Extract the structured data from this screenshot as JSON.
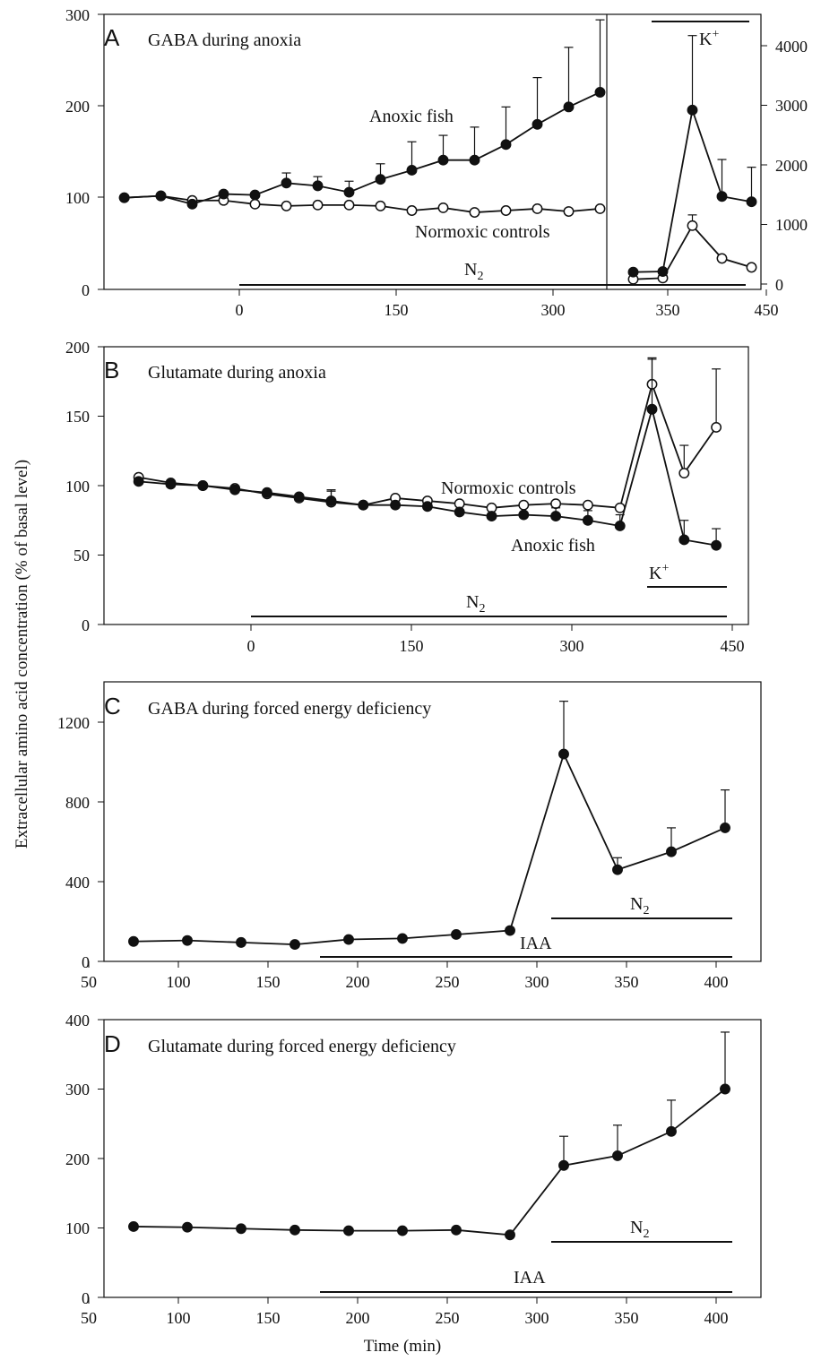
{
  "figure": {
    "ylabel": "Extracellular amino acid concentration (% of basal level)",
    "xlabel": "Time (min)"
  },
  "chart_data": [
    {
      "type": "line",
      "panel": "A",
      "title": "GABA during anoxia",
      "y_ticks": [
        "0",
        "100",
        "200",
        "300"
      ],
      "x_ticks": [
        "0",
        "150",
        "300"
      ],
      "ylim": [
        0,
        300
      ],
      "series": [
        {
          "name": "Anoxic fish",
          "marker": "filled",
          "x": [
            -110,
            -75,
            -45,
            -15,
            15,
            45,
            75,
            105,
            135,
            165,
            195,
            225,
            255,
            285,
            315,
            345
          ],
          "y": [
            100,
            102,
            93,
            104,
            103,
            116,
            113,
            106,
            120,
            130,
            141,
            141,
            158,
            180,
            199,
            215
          ],
          "err": [
            0,
            0,
            0,
            0,
            0,
            11,
            10,
            12,
            17,
            31,
            27,
            36,
            41,
            51,
            65,
            79
          ]
        },
        {
          "name": "Normoxic controls",
          "marker": "open",
          "x": [
            -110,
            -75,
            -45,
            -15,
            15,
            45,
            75,
            105,
            135,
            165,
            195,
            225,
            255,
            285,
            315,
            345
          ],
          "y": [
            100,
            102,
            97,
            97,
            93,
            91,
            92,
            92,
            91,
            86,
            89,
            84,
            86,
            88,
            85,
            88
          ],
          "err": [
            0,
            0,
            0,
            0,
            0,
            0,
            0,
            0,
            0,
            0,
            0,
            0,
            0,
            0,
            0,
            0
          ]
        }
      ],
      "bars": [
        {
          "label": "N2",
          "x": [
            -5,
            390
          ]
        }
      ]
    },
    {
      "type": "line",
      "panel": "A (K+ inset)",
      "y_ticks": [
        "0",
        "1000",
        "2000",
        "3000",
        "4000"
      ],
      "x_ticks": [
        "350",
        "450"
      ],
      "ylim": [
        0,
        4600
      ],
      "xlim": [
        310,
        450
      ],
      "series": [
        {
          "name": "Anoxic fish",
          "marker": "filled",
          "x": [
            315,
            345,
            375,
            405,
            435
          ],
          "y": [
            200,
            210,
            2920,
            1470,
            1380
          ],
          "err": [
            0,
            0,
            1250,
            620,
            580
          ]
        },
        {
          "name": "Normoxic controls",
          "marker": "open",
          "x": [
            315,
            345,
            375,
            405,
            435
          ],
          "y": [
            80,
            100,
            980,
            430,
            280
          ],
          "err": [
            0,
            0,
            180,
            0,
            0
          ]
        }
      ],
      "bars": [
        {
          "label": "K+",
          "x": [
            350,
            440
          ]
        }
      ]
    },
    {
      "type": "line",
      "panel": "B",
      "title": "Glutamate during anoxia",
      "y_ticks": [
        "0",
        "50",
        "100",
        "150",
        "200"
      ],
      "x_ticks": [
        "0",
        "150",
        "300",
        "450"
      ],
      "ylim": [
        0,
        200
      ],
      "series": [
        {
          "name": "Normoxic controls",
          "marker": "open",
          "x": [
            -105,
            -75,
            -45,
            -15,
            15,
            45,
            75,
            105,
            135,
            165,
            195,
            225,
            255,
            285,
            315,
            345,
            375,
            405,
            435
          ],
          "y": [
            106,
            102,
            100,
            98,
            94,
            91,
            88,
            86,
            91,
            89,
            87,
            84,
            86,
            87,
            86,
            84,
            173,
            109,
            142
          ],
          "err": [
            0,
            0,
            0,
            0,
            0,
            0,
            9,
            0,
            0,
            0,
            0,
            0,
            0,
            0,
            0,
            0,
            18,
            20,
            42
          ]
        },
        {
          "name": "Anoxic fish",
          "marker": "filled",
          "x": [
            -105,
            -75,
            -45,
            -15,
            15,
            45,
            75,
            105,
            135,
            165,
            195,
            225,
            255,
            285,
            315,
            345,
            375,
            405,
            435
          ],
          "y": [
            103,
            101,
            100,
            97,
            95,
            92,
            89,
            86,
            86,
            85,
            81,
            78,
            79,
            78,
            75,
            71,
            155,
            61,
            57
          ],
          "err": [
            0,
            0,
            0,
            0,
            0,
            0,
            7,
            0,
            0,
            0,
            0,
            0,
            0,
            6,
            7,
            8,
            37,
            14,
            12
          ]
        }
      ],
      "bars": [
        {
          "label": "N2",
          "x": [
            0,
            445
          ]
        },
        {
          "label": "K+",
          "x": [
            372,
            445
          ]
        }
      ]
    },
    {
      "type": "line",
      "panel": "C",
      "title": "GABA during forced energy deficiency",
      "y_ticks": [
        "0",
        "400",
        "800",
        "1200"
      ],
      "x_ticks": [
        "50",
        "100",
        "150",
        "200",
        "250",
        "300",
        "350",
        "400"
      ],
      "xlim": [
        50,
        425
      ],
      "ylim": [
        0,
        1400
      ],
      "series": [
        {
          "marker": "filled",
          "x": [
            75,
            105,
            135,
            165,
            195,
            225,
            255,
            285,
            315,
            345,
            375,
            405
          ],
          "y": [
            100,
            105,
            95,
            85,
            110,
            115,
            135,
            155,
            1040,
            460,
            550,
            670
          ],
          "err": [
            0,
            0,
            0,
            0,
            0,
            0,
            0,
            0,
            265,
            60,
            120,
            190
          ]
        }
      ],
      "bars": [
        {
          "label": "IAA",
          "x": [
            178,
            408
          ]
        },
        {
          "label": "N2",
          "x": [
            307,
            408
          ]
        }
      ]
    },
    {
      "type": "line",
      "panel": "D",
      "title": "Glutamate during forced energy deficiency",
      "y_ticks": [
        "0",
        "100",
        "200",
        "300",
        "400"
      ],
      "x_ticks": [
        "50",
        "100",
        "150",
        "200",
        "250",
        "300",
        "350",
        "400"
      ],
      "xlim": [
        50,
        425
      ],
      "ylim": [
        0,
        400
      ],
      "series": [
        {
          "marker": "filled",
          "x": [
            75,
            105,
            135,
            165,
            195,
            225,
            255,
            285,
            315,
            345,
            375,
            405
          ],
          "y": [
            102,
            101,
            99,
            97,
            96,
            96,
            97,
            90,
            190,
            204,
            239,
            300
          ],
          "err": [
            0,
            0,
            0,
            0,
            0,
            0,
            0,
            0,
            42,
            44,
            45,
            82
          ]
        }
      ],
      "bars": [
        {
          "label": "IAA",
          "x": [
            178,
            408
          ]
        },
        {
          "label": "N2",
          "x": [
            307,
            408
          ]
        }
      ]
    }
  ]
}
